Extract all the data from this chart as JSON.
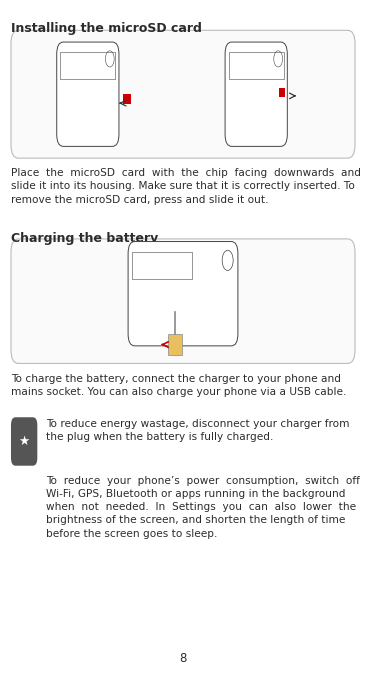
{
  "bg_color": "#ffffff",
  "title1": "Installing the microSD card",
  "title2": "Charging the battery",
  "section1_text": "Place  the  microSD  card  with  the  chip  facing  downwards  and slide it into its housing. Make sure that it is correctly inserted. To remove the microSD card, press and slide it out.",
  "section2_text": "To charge the battery, connect the charger to your phone and mains socket. You can also charge your phone via a USB cable.",
  "tip1": "To reduce energy wastage, disconnect your charger from the plug when the battery is fully charged.",
  "tip2": "To  reduce  your  phone’s  power  consumption,  switch  off Wi-Fi, GPS, Bluetooth or apps running in the background when  not  needed.  In  Settings  you  can  also  lower  the brightness of the screen, and shorten the length of time before the screen goes to sleep.",
  "page_number": "8",
  "title_color": "#2c2c2c",
  "text_color": "#2c2c2c",
  "box_border_color": "#cccccc",
  "box_bg_color": "#ffffff",
  "tip_icon_bg": "#555555",
  "title_fontsize": 9.0,
  "text_fontsize": 7.6,
  "page_num_fontsize": 8.5
}
